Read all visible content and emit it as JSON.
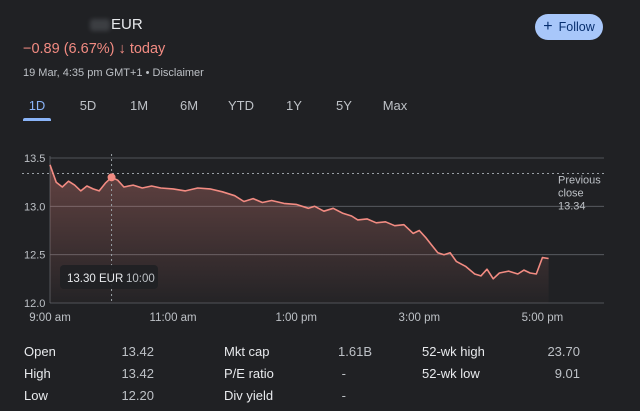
{
  "header": {
    "currency": "EUR",
    "change_text": "−0.89 (6.67%)",
    "change_arrow": "↓",
    "change_period": "today",
    "timestamp": "19 Mar, 4:35 pm GMT+1",
    "separator": " • ",
    "disclaimer": "Disclaimer",
    "follow_label": "Follow",
    "accent_color": "#f28b82"
  },
  "tabs": [
    {
      "label": "1D",
      "active": true
    },
    {
      "label": "5D",
      "active": false
    },
    {
      "label": "1M",
      "active": false
    },
    {
      "label": "6M",
      "active": false
    },
    {
      "label": "YTD",
      "active": false
    },
    {
      "label": "1Y",
      "active": false
    },
    {
      "label": "5Y",
      "active": false
    },
    {
      "label": "Max",
      "active": false
    }
  ],
  "chart_data": {
    "type": "area",
    "ylim": [
      12.0,
      13.5
    ],
    "y_ticks": [
      "13.5",
      "13.0",
      "12.5",
      "12.0"
    ],
    "x_ticks": [
      "9:00 am",
      "11:00 am",
      "1:00 pm",
      "3:00 pm",
      "5:00 pm"
    ],
    "x_tick_hours": [
      9,
      11,
      13,
      15,
      17
    ],
    "xlim_hours": [
      9,
      18
    ],
    "grid": true,
    "previous_close": 13.34,
    "previous_close_label_1": "Previous",
    "previous_close_label_2": "close",
    "previous_close_value": "13.34",
    "tooltip_price": "13.30 EUR",
    "tooltip_time": "10:00",
    "hover_hour": 10.0,
    "hover_value": 13.3,
    "series": [
      {
        "values": [
          [
            9.0,
            13.43
          ],
          [
            9.1,
            13.25
          ],
          [
            9.2,
            13.2
          ],
          [
            9.3,
            13.26
          ],
          [
            9.4,
            13.22
          ],
          [
            9.5,
            13.16
          ],
          [
            9.6,
            13.21
          ],
          [
            9.7,
            13.18
          ],
          [
            9.8,
            13.16
          ],
          [
            9.9,
            13.24
          ],
          [
            10.0,
            13.3
          ],
          [
            10.1,
            13.27
          ],
          [
            10.2,
            13.2
          ],
          [
            10.35,
            13.22
          ],
          [
            10.5,
            13.19
          ],
          [
            10.65,
            13.21
          ],
          [
            10.8,
            13.19
          ],
          [
            11.0,
            13.18
          ],
          [
            11.2,
            13.16
          ],
          [
            11.4,
            13.19
          ],
          [
            11.6,
            13.18
          ],
          [
            11.8,
            13.15
          ],
          [
            12.0,
            13.11
          ],
          [
            12.15,
            13.05
          ],
          [
            12.3,
            13.08
          ],
          [
            12.45,
            13.04
          ],
          [
            12.6,
            13.06
          ],
          [
            12.8,
            13.03
          ],
          [
            13.0,
            13.02
          ],
          [
            13.2,
            12.98
          ],
          [
            13.3,
            13.0
          ],
          [
            13.45,
            12.95
          ],
          [
            13.6,
            12.98
          ],
          [
            13.75,
            12.93
          ],
          [
            13.9,
            12.9
          ],
          [
            14.0,
            12.86
          ],
          [
            14.15,
            12.87
          ],
          [
            14.3,
            12.83
          ],
          [
            14.45,
            12.84
          ],
          [
            14.6,
            12.8
          ],
          [
            14.75,
            12.81
          ],
          [
            14.9,
            12.72
          ],
          [
            15.0,
            12.75
          ],
          [
            15.1,
            12.68
          ],
          [
            15.2,
            12.6
          ],
          [
            15.3,
            12.52
          ],
          [
            15.4,
            12.5
          ],
          [
            15.5,
            12.52
          ],
          [
            15.6,
            12.43
          ],
          [
            15.75,
            12.38
          ],
          [
            15.9,
            12.3
          ],
          [
            16.0,
            12.28
          ],
          [
            16.1,
            12.35
          ],
          [
            16.2,
            12.25
          ],
          [
            16.3,
            12.31
          ],
          [
            16.45,
            12.33
          ],
          [
            16.6,
            12.3
          ],
          [
            16.7,
            12.34
          ],
          [
            16.8,
            12.31
          ],
          [
            16.9,
            12.3
          ],
          [
            17.0,
            12.47
          ],
          [
            17.1,
            12.46
          ]
        ]
      }
    ]
  },
  "stats": {
    "open_label": "Open",
    "open_value": "13.42",
    "high_label": "High",
    "high_value": "13.42",
    "low_label": "Low",
    "low_value": "12.20",
    "mktcap_label": "Mkt cap",
    "mktcap_value": "1.61B",
    "pe_label": "P/E ratio",
    "pe_value": "-",
    "div_label": "Div yield",
    "div_value": "-",
    "wkhigh_label": "52-wk high",
    "wkhigh_value": "23.70",
    "wklow_label": "52-wk low",
    "wklow_value": "9.01"
  }
}
